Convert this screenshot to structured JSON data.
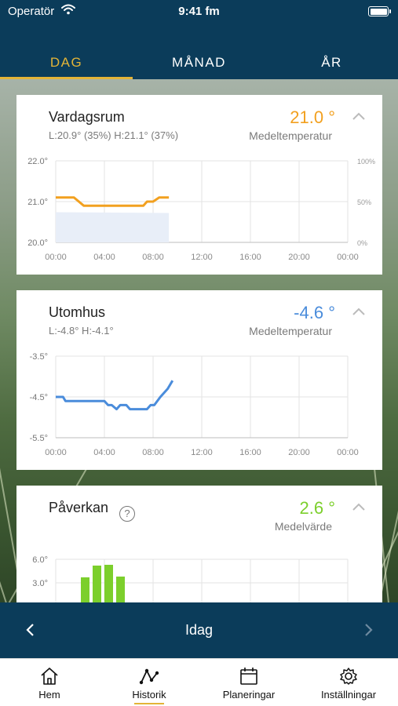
{
  "status_bar": {
    "carrier": "Operatör",
    "time": "9:41 fm"
  },
  "tabs": [
    {
      "label": "DAG",
      "active": true
    },
    {
      "label": "MÅNAD",
      "active": false
    },
    {
      "label": "ÅR",
      "active": false
    }
  ],
  "colors": {
    "brand": "#0b3c5a",
    "accent": "#e3b437",
    "indoor": "#f2a01f",
    "outdoor": "#4a8cdb",
    "impact": "#7ccf2c",
    "humidity_fill": "#e8eef8"
  },
  "cards": {
    "indoor": {
      "title": "Vardagsrum",
      "sub": "L:20.9° (35%)   H:21.1° (37%)",
      "value": "21.0 °",
      "label": "Medeltemperatur"
    },
    "outdoor": {
      "title": "Utomhus",
      "sub": "L:-4.8° H:-4.1°",
      "value": "-4.6 °",
      "label": "Medeltemperatur"
    },
    "impact": {
      "title": "Påverkan",
      "help": "?",
      "value": "2.6 °",
      "label": "Medelvärde"
    }
  },
  "chart_data": [
    {
      "type": "line",
      "x_ticks": [
        "00:00",
        "04:00",
        "08:00",
        "12:00",
        "16:00",
        "20:00",
        "00:00"
      ],
      "y_ticks": [
        "20.0°",
        "21.0°",
        "22.0°"
      ],
      "y2_ticks": [
        "0%",
        "50%",
        "100%"
      ],
      "ylim": [
        20.0,
        22.0
      ],
      "y2lim": [
        0,
        100
      ],
      "series": [
        {
          "kind": "temperature",
          "x": [
            0,
            1.5,
            1.7,
            2.3,
            4,
            6,
            7.2,
            7.5,
            8,
            8.5,
            9.3
          ],
          "y": [
            21.1,
            21.1,
            21.05,
            20.9,
            20.9,
            20.9,
            20.9,
            21.0,
            21.0,
            21.1,
            21.1
          ]
        },
        {
          "kind": "humidity",
          "x": [
            0,
            9.3
          ],
          "y": [
            37,
            36
          ]
        }
      ]
    },
    {
      "type": "line",
      "x_ticks": [
        "00:00",
        "04:00",
        "08:00",
        "12:00",
        "16:00",
        "20:00",
        "00:00"
      ],
      "y_ticks": [
        "-5.5°",
        "-4.5°",
        "-3.5°"
      ],
      "ylim": [
        -5.5,
        -3.5
      ],
      "series": [
        {
          "kind": "temperature",
          "x": [
            0,
            0.6,
            0.8,
            2,
            4,
            4.3,
            4.6,
            5,
            5.3,
            5.8,
            6.1,
            7.2,
            7.5,
            7.8,
            8.1,
            8.6,
            9.2,
            9.6
          ],
          "y": [
            -4.5,
            -4.5,
            -4.6,
            -4.6,
            -4.6,
            -4.7,
            -4.7,
            -4.8,
            -4.7,
            -4.7,
            -4.8,
            -4.8,
            -4.8,
            -4.7,
            -4.7,
            -4.5,
            -4.3,
            -4.1
          ]
        }
      ]
    },
    {
      "type": "bar",
      "y_ticks": [
        "3.0°",
        "6.0°"
      ],
      "ylim": [
        0,
        6.0
      ],
      "x": [
        1,
        2,
        3,
        4
      ],
      "values": [
        3.7,
        5.2,
        5.3,
        3.8
      ]
    }
  ],
  "date_nav": {
    "label": "Idag"
  },
  "tabbar": [
    {
      "label": "Hem",
      "icon": "home-icon"
    },
    {
      "label": "Historik",
      "icon": "history-icon",
      "active": true
    },
    {
      "label": "Planeringar",
      "icon": "calendar-icon"
    },
    {
      "label": "Inställningar",
      "icon": "gear-icon"
    }
  ]
}
